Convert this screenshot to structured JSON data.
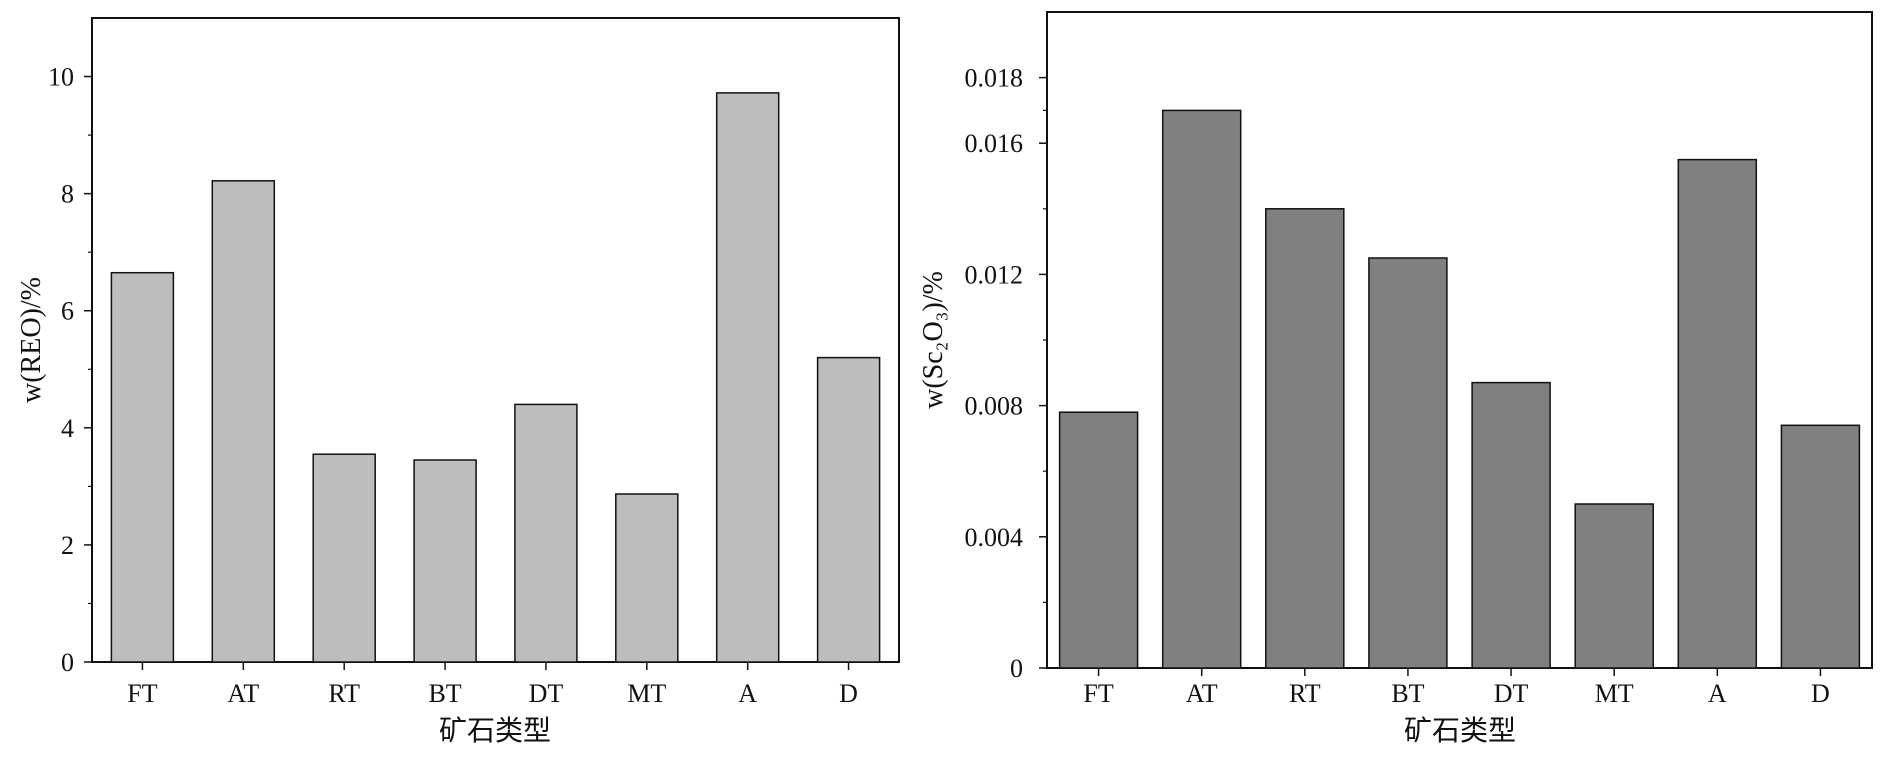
{
  "chart_data": [
    {
      "type": "bar",
      "categories": [
        "FT",
        "AT",
        "RT",
        "BT",
        "DT",
        "MT",
        "A",
        "D"
      ],
      "values": [
        6.65,
        8.22,
        3.55,
        3.45,
        4.4,
        2.87,
        9.72,
        5.2
      ],
      "xlabel": "矿石类型",
      "ylabel": "w(REO)/%",
      "ylim": [
        0,
        11
      ],
      "yticks": [
        "0",
        "2",
        "4",
        "6",
        "8",
        "10"
      ],
      "bar_color": "#bdbdbd",
      "grid": false
    },
    {
      "type": "bar",
      "categories": [
        "FT",
        "AT",
        "RT",
        "BT",
        "DT",
        "MT",
        "A",
        "D"
      ],
      "values": [
        0.0078,
        0.017,
        0.014,
        0.0125,
        0.0087,
        0.005,
        0.0155,
        0.0074
      ],
      "xlabel": "矿石类型",
      "ylabel": "w(Sc₂O₃)/%",
      "ylim": [
        0,
        0.02
      ],
      "yticks": [
        "0",
        "0.004",
        "0.008",
        "0.012",
        "0.016",
        "0.018"
      ],
      "bar_color": "#808080",
      "grid": false
    }
  ]
}
